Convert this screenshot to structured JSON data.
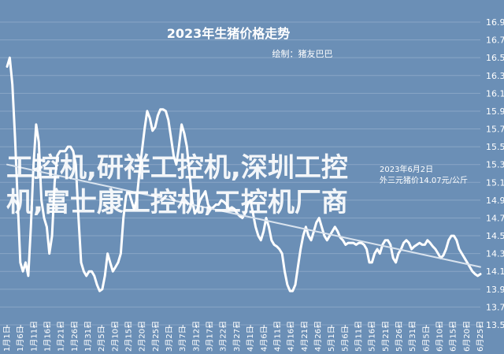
{
  "chart_data": {
    "type": "line",
    "title": "2023年生猪价格走势",
    "subtitle": "绘制：猪友巴巴",
    "annotation_lines": [
      "2023年6月2日",
      "外三元猪价14.07元/公斤"
    ],
    "ylim": [
      13.5,
      16.9
    ],
    "yticks": [
      13.5,
      13.7,
      13.9,
      14.1,
      14.3,
      14.5,
      14.7,
      14.9,
      15.1,
      15.3,
      15.5,
      15.7,
      15.9,
      16.1,
      16.3,
      16.5,
      16.7,
      16.9
    ],
    "xlabels": [
      "1月1日",
      "1月6日",
      "1月11日",
      "1月16日",
      "1月21日",
      "1月26日",
      "1月31日",
      "2月5日",
      "2月10日",
      "2月15日",
      "2月20日",
      "2月25日",
      "3月2日",
      "3月7日",
      "3月12日",
      "3月17日",
      "3月22日",
      "3月27日",
      "4月1日",
      "4月6日",
      "4月11日",
      "4月16日",
      "4月21日",
      "4月26日",
      "5月1日",
      "5月6日",
      "5月11日",
      "5月16日",
      "5月21日",
      "5月26日",
      "5月31日",
      "6月5日",
      "6月10日",
      "6月15日",
      "6月20日",
      "6月25日"
    ],
    "x_day_range": [
      0,
      179
    ],
    "grid": true,
    "series": [
      {
        "color": "#ffffff",
        "points": [
          [
            0,
            16.4
          ],
          [
            1,
            16.5
          ],
          [
            2,
            16.2
          ],
          [
            3,
            15.6
          ],
          [
            4,
            14.9
          ],
          [
            5,
            14.2
          ],
          [
            6,
            14.1
          ],
          [
            7,
            14.2
          ],
          [
            8,
            14.05
          ],
          [
            9,
            14.6
          ],
          [
            10,
            15.3
          ],
          [
            11,
            15.75
          ],
          [
            12,
            15.55
          ],
          [
            13,
            14.9
          ],
          [
            14,
            14.7
          ],
          [
            15,
            14.6
          ],
          [
            16,
            14.3
          ],
          [
            17,
            14.5
          ],
          [
            18,
            15.1
          ],
          [
            19,
            15.4
          ],
          [
            20,
            15.45
          ],
          [
            21,
            15.45
          ],
          [
            22,
            15.45
          ],
          [
            23,
            15.5
          ],
          [
            24,
            15.5
          ],
          [
            25,
            15.45
          ],
          [
            26,
            15.3
          ],
          [
            27,
            14.7
          ],
          [
            28,
            14.2
          ],
          [
            29,
            14.1
          ],
          [
            30,
            14.05
          ],
          [
            31,
            14.1
          ],
          [
            32,
            14.1
          ],
          [
            33,
            14.05
          ],
          [
            34,
            13.95
          ],
          [
            35,
            13.88
          ],
          [
            36,
            13.9
          ],
          [
            37,
            14.05
          ],
          [
            38,
            14.3
          ],
          [
            39,
            14.2
          ],
          [
            40,
            14.1
          ],
          [
            41,
            14.15
          ],
          [
            42,
            14.2
          ],
          [
            43,
            14.3
          ],
          [
            44,
            14.7
          ],
          [
            45,
            14.95
          ],
          [
            46,
            15.0
          ],
          [
            47,
            14.9
          ],
          [
            48,
            14.8
          ],
          [
            49,
            14.9
          ],
          [
            50,
            15.2
          ],
          [
            51,
            15.45
          ],
          [
            52,
            15.7
          ],
          [
            53,
            15.9
          ],
          [
            54,
            15.82
          ],
          [
            55,
            15.68
          ],
          [
            56,
            15.72
          ],
          [
            57,
            15.85
          ],
          [
            58,
            15.92
          ],
          [
            59,
            15.92
          ],
          [
            60,
            15.9
          ],
          [
            61,
            15.8
          ],
          [
            62,
            15.6
          ],
          [
            63,
            15.4
          ],
          [
            64,
            15.3
          ],
          [
            65,
            15.5
          ],
          [
            66,
            15.75
          ],
          [
            67,
            15.65
          ],
          [
            68,
            15.5
          ],
          [
            69,
            15.2
          ],
          [
            70,
            14.9
          ],
          [
            71,
            14.75
          ],
          [
            72,
            14.8
          ],
          [
            73,
            14.9
          ],
          [
            74,
            14.95
          ],
          [
            75,
            15.0
          ],
          [
            76,
            14.85
          ],
          [
            77,
            14.8
          ],
          [
            78,
            14.82
          ],
          [
            79,
            14.85
          ],
          [
            80,
            14.85
          ],
          [
            81,
            14.9
          ],
          [
            82,
            14.88
          ],
          [
            83,
            14.85
          ],
          [
            84,
            14.8
          ],
          [
            85,
            14.82
          ],
          [
            86,
            14.8
          ],
          [
            87,
            14.75
          ],
          [
            88,
            14.72
          ],
          [
            89,
            14.7
          ],
          [
            90,
            14.75
          ],
          [
            91,
            14.85
          ],
          [
            92,
            14.9
          ],
          [
            93,
            14.75
          ],
          [
            94,
            14.6
          ],
          [
            95,
            14.5
          ],
          [
            96,
            14.45
          ],
          [
            97,
            14.55
          ],
          [
            98,
            14.7
          ],
          [
            99,
            14.6
          ],
          [
            100,
            14.45
          ],
          [
            101,
            14.4
          ],
          [
            102,
            14.38
          ],
          [
            103,
            14.35
          ],
          [
            104,
            14.3
          ],
          [
            105,
            14.1
          ],
          [
            106,
            13.95
          ],
          [
            107,
            13.88
          ],
          [
            108,
            13.88
          ],
          [
            109,
            13.95
          ],
          [
            110,
            14.15
          ],
          [
            111,
            14.35
          ],
          [
            112,
            14.5
          ],
          [
            113,
            14.6
          ],
          [
            114,
            14.5
          ],
          [
            115,
            14.45
          ],
          [
            116,
            14.55
          ],
          [
            117,
            14.65
          ],
          [
            118,
            14.7
          ],
          [
            119,
            14.6
          ],
          [
            120,
            14.5
          ],
          [
            121,
            14.45
          ],
          [
            122,
            14.5
          ],
          [
            123,
            14.55
          ],
          [
            124,
            14.6
          ],
          [
            125,
            14.55
          ],
          [
            126,
            14.48
          ],
          [
            127,
            14.45
          ],
          [
            128,
            14.4
          ],
          [
            129,
            14.42
          ],
          [
            130,
            14.42
          ],
          [
            131,
            14.42
          ],
          [
            132,
            14.4
          ],
          [
            133,
            14.42
          ],
          [
            134,
            14.42
          ],
          [
            135,
            14.4
          ],
          [
            136,
            14.35
          ],
          [
            137,
            14.2
          ],
          [
            138,
            14.2
          ],
          [
            139,
            14.3
          ],
          [
            140,
            14.35
          ],
          [
            141,
            14.3
          ],
          [
            142,
            14.4
          ],
          [
            143,
            14.45
          ],
          [
            144,
            14.45
          ],
          [
            145,
            14.4
          ],
          [
            146,
            14.25
          ],
          [
            147,
            14.2
          ],
          [
            148,
            14.3
          ],
          [
            149,
            14.35
          ],
          [
            150,
            14.42
          ],
          [
            151,
            14.45
          ],
          [
            152,
            14.42
          ],
          [
            153,
            14.35
          ],
          [
            154,
            14.38
          ],
          [
            155,
            14.4
          ],
          [
            156,
            14.42
          ],
          [
            157,
            14.4
          ],
          [
            158,
            14.4
          ],
          [
            159,
            14.45
          ],
          [
            160,
            14.42
          ],
          [
            161,
            14.38
          ],
          [
            162,
            14.35
          ],
          [
            163,
            14.3
          ],
          [
            164,
            14.25
          ],
          [
            165,
            14.28
          ],
          [
            166,
            14.35
          ],
          [
            167,
            14.45
          ],
          [
            168,
            14.5
          ],
          [
            169,
            14.5
          ],
          [
            170,
            14.45
          ],
          [
            171,
            14.35
          ],
          [
            172,
            14.3
          ],
          [
            173,
            14.25
          ],
          [
            174,
            14.2
          ],
          [
            175,
            14.15
          ],
          [
            176,
            14.1
          ],
          [
            177,
            14.07
          ],
          [
            178,
            14.05
          ],
          [
            179,
            14.07
          ]
        ]
      },
      {
        "color": "#d9e3ee",
        "points": [
          [
            0,
            15.3
          ],
          [
            179,
            14.15
          ]
        ]
      }
    ],
    "watermark_lines": [
      "工控机,研祥工控机,深圳工控",
      "机,富士康工控机,工控机厂商"
    ]
  }
}
